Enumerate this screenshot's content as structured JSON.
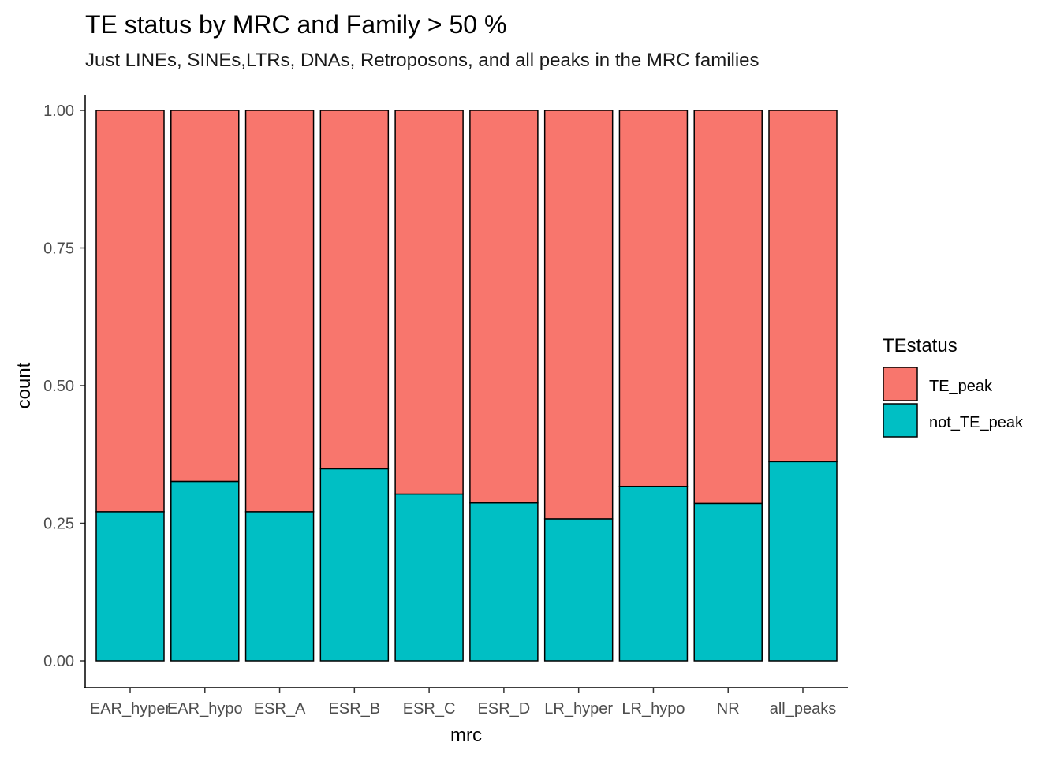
{
  "chart_data": {
    "type": "bar",
    "stacked": true,
    "title": "TE status by MRC and Family > 50 %",
    "subtitle": "Just LINEs, SINEs,LTRs, DNAs, Retroposons, and all peaks in the MRC families",
    "xlabel": "mrc",
    "ylabel": "count",
    "ylim": [
      0,
      1
    ],
    "yticks": [
      "0.00",
      "0.25",
      "0.50",
      "0.75",
      "1.00"
    ],
    "categories": [
      "EAR_hyper",
      "EAR_hypo",
      "ESR_A",
      "ESR_B",
      "ESR_C",
      "ESR_D",
      "LR_hyper",
      "LR_hypo",
      "NR",
      "all_peaks"
    ],
    "series": [
      {
        "name": "not_TE_peak",
        "color": "#00BFC4",
        "values": [
          0.271,
          0.326,
          0.271,
          0.349,
          0.303,
          0.287,
          0.258,
          0.317,
          0.286,
          0.362
        ]
      },
      {
        "name": "TE_peak",
        "color": "#F8766D",
        "values": [
          0.729,
          0.674,
          0.729,
          0.651,
          0.697,
          0.713,
          0.742,
          0.683,
          0.714,
          0.638
        ]
      }
    ],
    "legend": {
      "title": "TEstatus",
      "position": "right",
      "entries": [
        {
          "label": "TE_peak",
          "color": "#F8766D"
        },
        {
          "label": "not_TE_peak",
          "color": "#00BFC4"
        }
      ]
    },
    "grid": false
  }
}
